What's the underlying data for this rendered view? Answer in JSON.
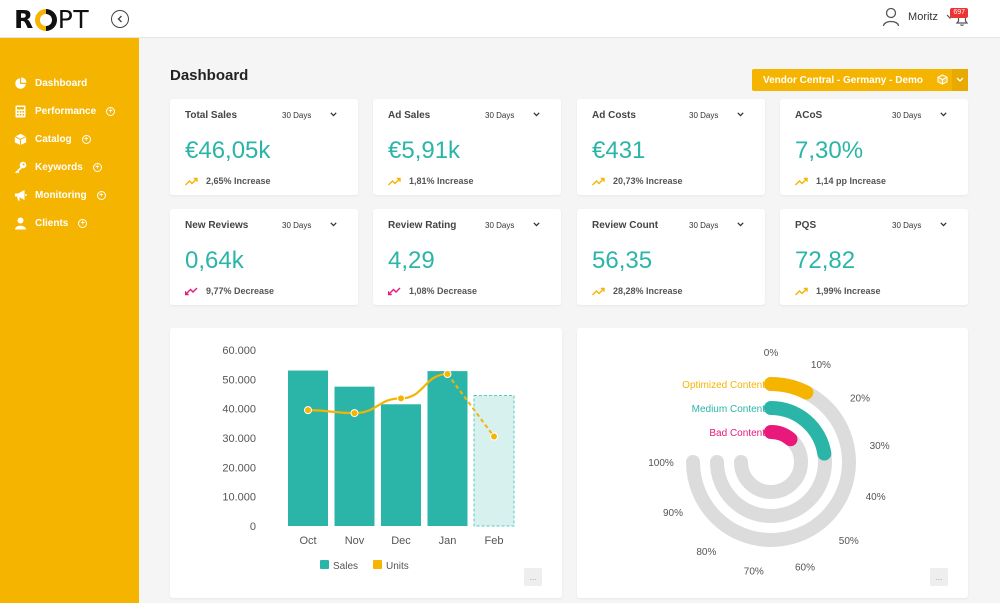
{
  "brand": {
    "logo_text_left": "R",
    "logo_text_right": "PT"
  },
  "header": {
    "user_name": "Moritz",
    "notification_count": "697"
  },
  "sidebar": {
    "items": [
      {
        "label": "Dashboard",
        "icon": "pie-chart-icon",
        "active": true,
        "plus": false
      },
      {
        "label": "Performance",
        "icon": "calculator-icon",
        "plus": true
      },
      {
        "label": "Catalog",
        "icon": "box-icon",
        "plus": true
      },
      {
        "label": "Keywords",
        "icon": "key-icon",
        "plus": true
      },
      {
        "label": "Monitoring",
        "icon": "megaphone-icon",
        "plus": true
      },
      {
        "label": "Clients",
        "icon": "users-icon",
        "plus": true
      }
    ]
  },
  "page": {
    "title": "Dashboard",
    "vendor_selector": "Vendor Central - Germany - Demo"
  },
  "kpis": [
    {
      "label": "Total Sales",
      "period": "30 Days",
      "value": "€46,05k",
      "change": "2,65% Increase",
      "trend": "up"
    },
    {
      "label": "Ad Sales",
      "period": "30 Days",
      "value": "€5,91k",
      "change": "1,81% Increase",
      "trend": "up"
    },
    {
      "label": "Ad Costs",
      "period": "30 Days",
      "value": "€431",
      "change": "20,73% Increase",
      "trend": "up"
    },
    {
      "label": "ACoS",
      "period": "30 Days",
      "value": "7,30%",
      "change": "1,14 pp Increase",
      "trend": "up"
    },
    {
      "label": "New Reviews",
      "period": "30 Days",
      "value": "0,64k",
      "change": "9,77% Decrease",
      "trend": "down"
    },
    {
      "label": "Review Rating",
      "period": "30 Days",
      "value": "4,29",
      "change": "1,08% Decrease",
      "trend": "down"
    },
    {
      "label": "Review Count",
      "period": "30 Days",
      "value": "56,35",
      "change": "28,28% Increase",
      "trend": "up"
    },
    {
      "label": "PQS",
      "period": "30 Days",
      "value": "72,82",
      "change": "1,99% Increase",
      "trend": "up"
    }
  ],
  "colors": {
    "accent": "#f5b400",
    "teal": "#2bb5a8",
    "pink": "#e8197a",
    "up": "#f5b400",
    "down": "#e8197a"
  },
  "chart_data": [
    {
      "type": "bar",
      "categories": [
        "Oct",
        "Nov",
        "Dec",
        "Jan",
        "Feb"
      ],
      "series": [
        {
          "name": "Sales",
          "values": [
            53000,
            47500,
            41500,
            52800,
            44500
          ],
          "color": "#2bb5a8"
        },
        {
          "name": "Units",
          "values": [
            39500,
            38500,
            43500,
            51800,
            30500
          ],
          "color": "#f5b400",
          "render": "line"
        }
      ],
      "forecast_category": "Feb",
      "yticks": [
        "0",
        "10.000",
        "20.000",
        "30.000",
        "40.000",
        "50.000",
        "60.000"
      ],
      "ylim": [
        0,
        60000
      ],
      "legend": "bottom",
      "more_label": "..."
    },
    {
      "type": "radial-bar",
      "series": [
        {
          "name": "Optimized Content",
          "value": 10,
          "color": "#f5b400"
        },
        {
          "name": "Medium Content",
          "value": 30,
          "color": "#2bb5a8"
        },
        {
          "name": "Bad Content",
          "value": 15,
          "color": "#e8197a"
        }
      ],
      "ticks": [
        "0%",
        "10%",
        "20%",
        "30%",
        "40%",
        "50%",
        "60%",
        "70%",
        "80%",
        "90%",
        "100%"
      ],
      "range": [
        0,
        100
      ],
      "more_label": "..."
    }
  ]
}
